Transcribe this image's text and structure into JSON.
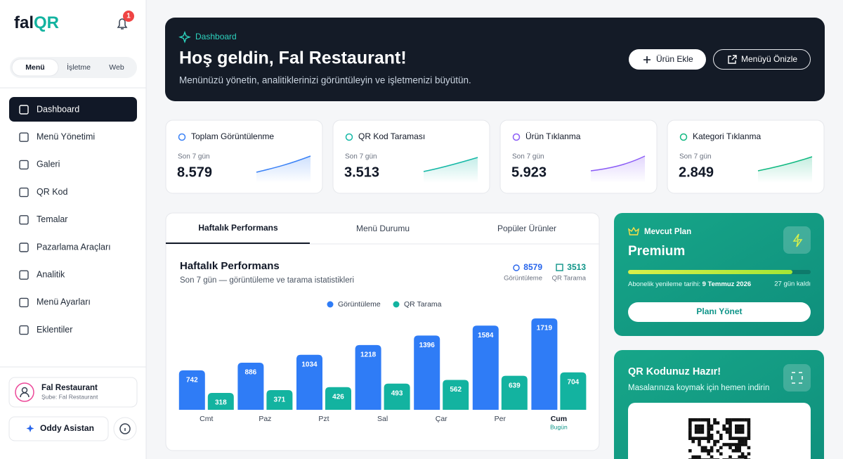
{
  "sidebar": {
    "logo": {
      "part1": "fal",
      "part2": "QR"
    },
    "notifications": "1",
    "tabs": [
      "Menü",
      "İşletme",
      "Web"
    ],
    "nav": [
      "Dashboard",
      "Menü Yönetimi",
      "Galeri",
      "QR Kod",
      "Temalar",
      "Pazarlama Araçları",
      "Analitik",
      "Menü Ayarları",
      "Eklentiler"
    ],
    "profile": {
      "name": "Fal Restaurant",
      "branch": "Şube: Fal Restaurant"
    },
    "assistant": "Oddy Asistan"
  },
  "header": {
    "label": "Dashboard",
    "title": "Hoş geldin, Fal Restaurant!",
    "subtitle": "Menünüzü yönetin, analitiklerinizi görüntüleyin ve işletmenizi büyütün.",
    "buttons": [
      "Ürün Ekle",
      "Menüyü Önizle"
    ]
  },
  "stats": [
    {
      "title": "Toplam Görüntülenme",
      "period": "Son 7 gün",
      "value": "8.579"
    },
    {
      "title": "QR Kod Taraması",
      "period": "Son 7 gün",
      "value": "3.513"
    },
    {
      "title": "Ürün Tıklanma",
      "period": "Son 7 gün",
      "value": "5.923"
    },
    {
      "title": "Kategori Tıklanma",
      "period": "Son 7 gün",
      "value": "2.849"
    }
  ],
  "panel_tabs": [
    "Haftalık Performans",
    "Menü Durumu",
    "Popüler Ürünler"
  ],
  "chart_data": {
    "type": "bar",
    "title": "Haftalık Performans",
    "subtitle": "Son 7 gün — görüntüleme ve tarama istatistikleri",
    "summary": [
      {
        "value": "8579",
        "label": "Görüntüleme"
      },
      {
        "value": "3513",
        "label": "QR Tarama"
      }
    ],
    "categories": [
      "Cmt",
      "Paz",
      "Pzt",
      "Sal",
      "Çar",
      "Per",
      "Cum"
    ],
    "today_label": "Bugün",
    "series": [
      {
        "name": "Görüntüleme",
        "color": "#2f7cf6",
        "values": [
          742,
          886,
          1034,
          1218,
          1396,
          1584,
          1719
        ]
      },
      {
        "name": "QR Tarama",
        "color": "#13b3a0",
        "values": [
          318,
          371,
          426,
          493,
          562,
          639,
          704
        ]
      }
    ]
  },
  "plan": {
    "label": "Mevcut Plan",
    "name": "Premium",
    "renewal_label": "Abonelik yenileme tarihi:",
    "renewal_date": "9 Temmuz 2026",
    "days_left": "27 gün kaldı",
    "button": "Planı Yönet"
  },
  "qr_card": {
    "title": "QR Kodunuz Hazır!",
    "subtitle": "Masalarınıza koymak için hemen indirin"
  }
}
